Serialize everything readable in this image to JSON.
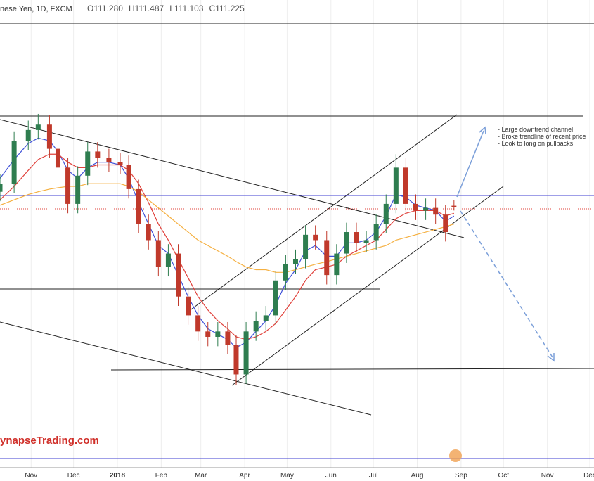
{
  "chart_data": {
    "type": "candlestick",
    "title": "nese Yen, 1D, FXCM",
    "ohlc_labels": [
      "O111.280",
      "H111.487",
      "L111.103",
      "C111.225"
    ],
    "candles": {
      "x": [
        "2017-10-10",
        "2017-10-20",
        "2017-10-30",
        "2017-11-06",
        "2017-11-14",
        "2017-11-20",
        "2017-11-27",
        "2017-12-04",
        "2017-12-11",
        "2017-12-18",
        "2017-12-26",
        "2018-01-03",
        "2018-01-09",
        "2018-01-16",
        "2018-01-23",
        "2018-01-30",
        "2018-02-06",
        "2018-02-13",
        "2018-02-20",
        "2018-02-27",
        "2018-03-06",
        "2018-03-13",
        "2018-03-20",
        "2018-03-26",
        "2018-04-02",
        "2018-04-09",
        "2018-04-16",
        "2018-04-23",
        "2018-04-30",
        "2018-05-07",
        "2018-05-14",
        "2018-05-21",
        "2018-05-29",
        "2018-06-05",
        "2018-06-12",
        "2018-06-19",
        "2018-06-26",
        "2018-07-03",
        "2018-07-10",
        "2018-07-17",
        "2018-07-24",
        "2018-07-31",
        "2018-08-07",
        "2018-08-14",
        "2018-08-21",
        "2018-08-27"
      ],
      "open": [
        111.8,
        112.1,
        113.7,
        114.1,
        114.3,
        113.4,
        112.7,
        111.35,
        112.4,
        113.3,
        113.05,
        112.9,
        112.8,
        111.9,
        110.6,
        110.0,
        109.0,
        109.5,
        107.9,
        107.2,
        106.6,
        106.4,
        106.6,
        106.1,
        105.0,
        106.6,
        107.0,
        107.2,
        108.5,
        109.1,
        109.3,
        110.2,
        110.0,
        108.7,
        109.5,
        110.3,
        109.9,
        110.0,
        110.6,
        111.35,
        112.7,
        111.35,
        111.1,
        111.2,
        110.95,
        111.28
      ],
      "high": [
        112.45,
        114.05,
        114.45,
        114.7,
        114.65,
        113.75,
        113.05,
        112.75,
        113.65,
        113.65,
        113.4,
        113.25,
        113.15,
        112.25,
        110.95,
        110.35,
        109.85,
        109.85,
        108.25,
        107.55,
        106.95,
        106.95,
        106.95,
        106.45,
        106.95,
        107.35,
        107.55,
        108.85,
        109.45,
        109.65,
        110.55,
        110.55,
        110.35,
        109.85,
        110.65,
        110.65,
        110.35,
        110.95,
        111.7,
        113.2,
        113.05,
        111.7,
        111.55,
        111.55,
        111.3,
        111.487
      ],
      "low": [
        111.45,
        111.75,
        113.35,
        113.75,
        113.05,
        112.35,
        111.0,
        111.0,
        112.05,
        112.7,
        112.55,
        112.45,
        111.55,
        110.25,
        109.65,
        108.65,
        108.65,
        107.55,
        106.85,
        106.25,
        106.05,
        106.05,
        105.75,
        104.6,
        104.65,
        106.25,
        106.65,
        106.85,
        108.15,
        108.75,
        108.95,
        109.65,
        108.35,
        108.35,
        109.15,
        109.55,
        109.55,
        109.65,
        110.25,
        111.0,
        111.0,
        110.75,
        110.75,
        110.6,
        109.95,
        111.103
      ],
      "close": [
        112.1,
        113.7,
        114.1,
        114.3,
        113.4,
        112.7,
        111.35,
        112.4,
        113.3,
        113.05,
        112.9,
        112.8,
        111.9,
        110.6,
        110.0,
        109.0,
        109.5,
        107.9,
        107.2,
        106.6,
        106.4,
        106.6,
        106.1,
        105.0,
        106.6,
        107.0,
        107.2,
        108.5,
        109.1,
        109.3,
        110.2,
        110.0,
        108.7,
        109.5,
        110.3,
        109.9,
        110.0,
        110.6,
        111.35,
        112.7,
        111.35,
        111.1,
        111.2,
        110.95,
        110.3,
        111.225
      ],
      "up_color": "#2e7d4f",
      "down_color": "#c0392b"
    },
    "lines": [
      {
        "color": "#3f51d8",
        "values": [
          112.3,
          113.0,
          113.6,
          113.8,
          113.7,
          113.3,
          112.6,
          112.3,
          112.7,
          112.9,
          112.9,
          112.8,
          112.3,
          111.4,
          110.6,
          109.8,
          109.5,
          108.7,
          107.9,
          107.2,
          106.7,
          106.5,
          106.3,
          106.0,
          106.2,
          106.6,
          107.0,
          107.6,
          108.4,
          108.9,
          109.6,
          109.8,
          109.4,
          109.4,
          109.9,
          109.9,
          110.0,
          110.3,
          110.9,
          111.7,
          111.6,
          111.3,
          111.2,
          111.1,
          110.7,
          110.9
        ]
      },
      {
        "color": "#e0403a",
        "values": [
          111.5,
          112.0,
          112.6,
          113.0,
          113.2,
          113.2,
          112.9,
          112.7,
          112.7,
          112.8,
          112.8,
          112.8,
          112.6,
          112.1,
          111.4,
          110.6,
          110.0,
          109.3,
          108.6,
          107.9,
          107.4,
          107.0,
          106.7,
          106.4,
          106.3,
          106.4,
          106.6,
          106.9,
          107.4,
          107.9,
          108.5,
          108.9,
          109.0,
          109.1,
          109.4,
          109.6,
          109.8,
          110.0,
          110.4,
          110.8,
          111.0,
          111.1,
          111.1,
          111.1,
          110.9,
          111.0
        ]
      },
      {
        "color": "#f5b041",
        "values": [
          111.3,
          111.5,
          111.7,
          111.8,
          111.9,
          111.95,
          112.0,
          112.0,
          112.1,
          112.1,
          112.1,
          112.1,
          112.0,
          111.8,
          111.5,
          111.2,
          110.9,
          110.6,
          110.3,
          110.0,
          109.8,
          109.6,
          109.4,
          109.2,
          109.0,
          108.9,
          108.9,
          108.8,
          108.8,
          108.9,
          109.0,
          109.1,
          109.2,
          109.3,
          109.4,
          109.5,
          109.6,
          109.7,
          109.8,
          110.0,
          110.1,
          110.2,
          110.3,
          110.4,
          110.5,
          110.6
        ]
      }
    ],
    "xlim": [
      "2017-10-10",
      "2018-12-04"
    ],
    "ylim": [
      101.53,
      118.94
    ],
    "xticks": [
      {
        "value": "2017-11-01",
        "label": "Nov"
      },
      {
        "value": "2017-12-01",
        "label": "Dec"
      },
      {
        "value": "2018-01-01",
        "label": "2018"
      },
      {
        "value": "2018-02-01",
        "label": "Feb"
      },
      {
        "value": "2018-03-01",
        "label": "Mar"
      },
      {
        "value": "2018-04-01",
        "label": "Apr"
      },
      {
        "value": "2018-05-01",
        "label": "May"
      },
      {
        "value": "2018-06-01",
        "label": "Jun"
      },
      {
        "value": "2018-07-01",
        "label": "Jul"
      },
      {
        "value": "2018-08-01",
        "label": "Aug"
      },
      {
        "value": "2018-09-01",
        "label": "Sep"
      },
      {
        "value": "2018-10-01",
        "label": "Oct"
      },
      {
        "value": "2018-11-01",
        "label": "Nov"
      },
      {
        "value": "2018-12-01",
        "label": "Dec"
      }
    ],
    "grid": true,
    "annotations": [
      "- Large downtrend channel",
      "- Broke trendline of recent price",
      "- Look to long on pullbacks"
    ],
    "watermark": "ynapseTrading.com"
  }
}
